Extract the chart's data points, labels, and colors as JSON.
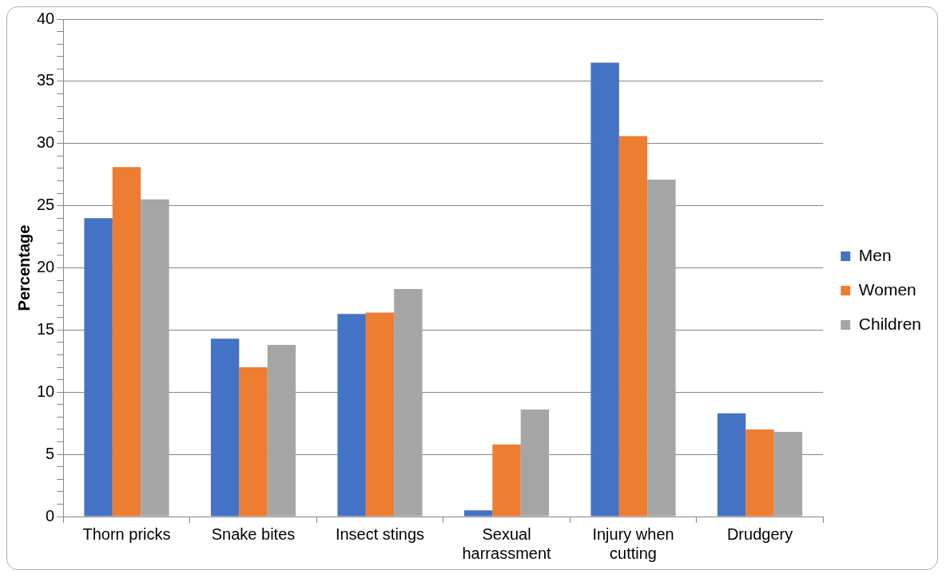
{
  "chart_data": {
    "type": "bar",
    "ylabel": "Percentage",
    "categories": [
      "Thorn pricks",
      "Snake bites",
      "Insect stings",
      "Sexual harrassment",
      "Injury when cutting",
      "Drudgery"
    ],
    "series": [
      {
        "name": "Men",
        "color": "#4472c4",
        "values": [
          24.0,
          14.3,
          16.3,
          0.5,
          36.5,
          8.3
        ]
      },
      {
        "name": "Women",
        "color": "#ed7d31",
        "values": [
          28.1,
          12.0,
          16.4,
          5.8,
          30.6,
          7.0
        ]
      },
      {
        "name": "Children",
        "color": "#a5a5a5",
        "values": [
          25.5,
          13.8,
          18.3,
          8.6,
          27.1,
          6.8
        ]
      }
    ],
    "ylim": [
      0,
      40
    ],
    "yticks": [
      0,
      {
        "value": 1,
        "label": null
      },
      {
        "value": 2,
        "label": null
      },
      {
        "value": 3,
        "label": null
      },
      {
        "value": 4,
        "label": null
      },
      5,
      {
        "value": 6,
        "label": null
      },
      {
        "value": 7,
        "label": null
      },
      {
        "value": 8,
        "label": null
      },
      {
        "value": 9,
        "label": null
      },
      10,
      {
        "value": 11,
        "label": null
      },
      {
        "value": 12,
        "label": null
      },
      {
        "value": 13,
        "label": null
      },
      {
        "value": 14,
        "label": null
      },
      15,
      {
        "value": 16,
        "label": null
      },
      {
        "value": 17,
        "label": null
      },
      {
        "value": 18,
        "label": null
      },
      {
        "value": 19,
        "label": null
      },
      20,
      {
        "value": 21,
        "label": null
      },
      {
        "value": 22,
        "label": null
      },
      {
        "value": 23,
        "label": null
      },
      {
        "value": 24,
        "label": null
      },
      25,
      {
        "value": 26,
        "label": null
      },
      {
        "value": 27,
        "label": null
      },
      {
        "value": 28,
        "label": null
      },
      {
        "value": 29,
        "label": null
      },
      30,
      {
        "value": 31,
        "label": null
      },
      {
        "value": 32,
        "label": null
      },
      {
        "value": 33,
        "label": null
      },
      {
        "value": 34,
        "label": null
      },
      35,
      {
        "value": 36,
        "label": null
      },
      {
        "value": 37,
        "label": null
      },
      {
        "value": 38,
        "label": null
      },
      {
        "value": 39,
        "label": null
      },
      40
    ],
    "grid": "y",
    "legend": "right"
  }
}
